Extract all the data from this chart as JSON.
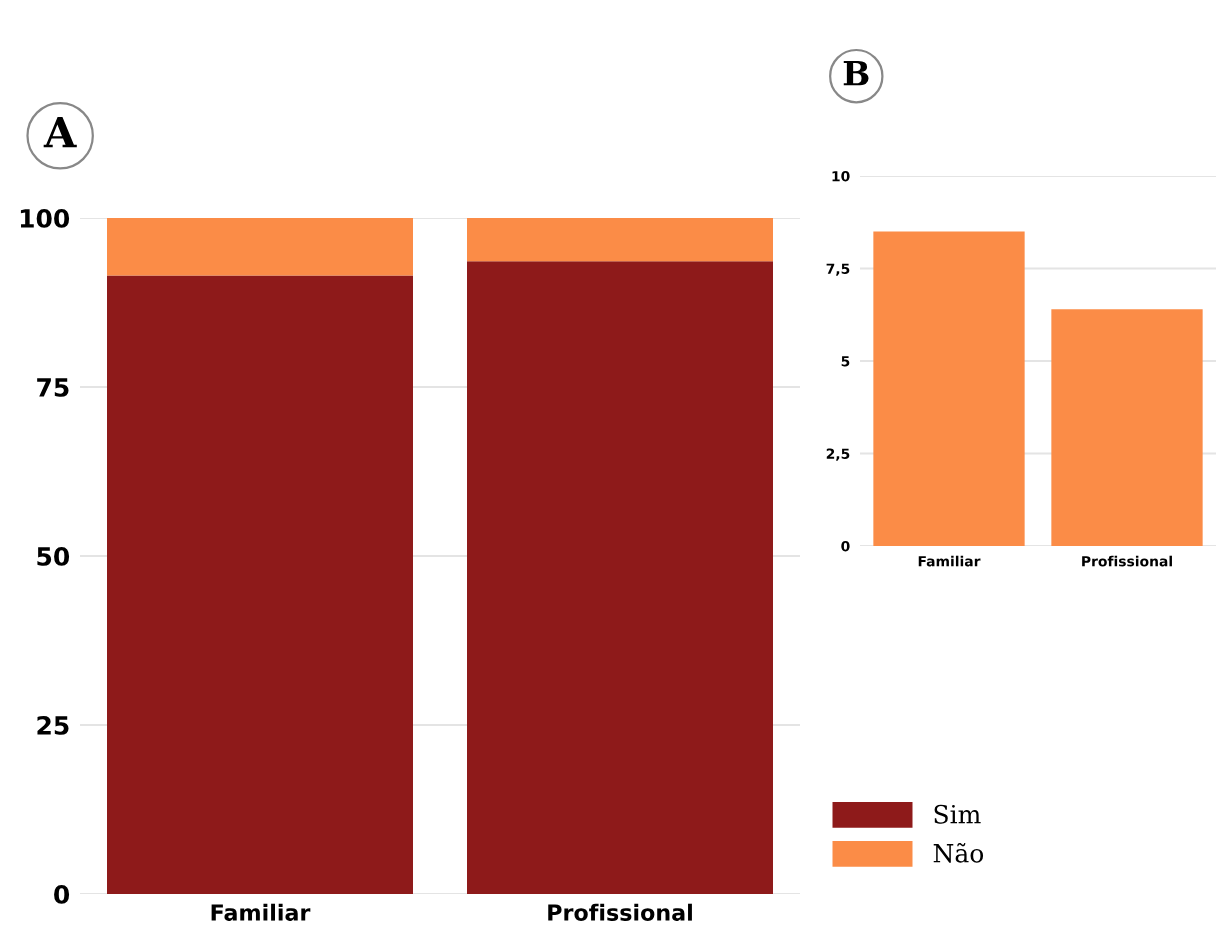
{
  "chart_data": [
    {
      "type": "bar",
      "title": "A",
      "categories": [
        "Familiar",
        "Profissional"
      ],
      "stacked": true,
      "series": [
        {
          "name": "Sim",
          "color": "#8e1a1a",
          "values": [
            91.5,
            93.6
          ]
        },
        {
          "name": "Não",
          "color": "#fb8c47",
          "values": [
            8.5,
            6.4
          ]
        }
      ],
      "ylim": [
        0,
        100
      ],
      "yticks": [
        0,
        25,
        50,
        75,
        100
      ],
      "grid": "y",
      "legend": "bottom right"
    },
    {
      "type": "bar",
      "title": "B",
      "categories": [
        "Familiar",
        "Profissional"
      ],
      "series": [
        {
          "color": "#fb8c47",
          "values": [
            8.5,
            6.4
          ]
        }
      ],
      "ylim": [
        0,
        10
      ],
      "yticks": [
        0,
        {
          "value": 2.5,
          "label": "2,5"
        },
        5,
        {
          "value": 7.5,
          "label": "7,5"
        },
        10
      ],
      "grid": "y"
    }
  ]
}
